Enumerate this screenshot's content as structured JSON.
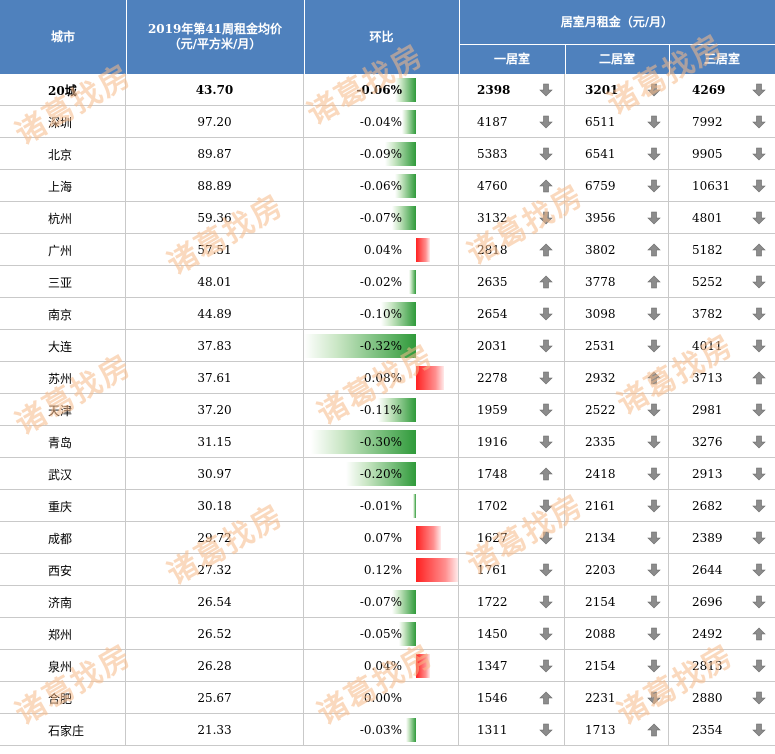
{
  "header": {
    "city": "城市",
    "price_line1": "2019年第41周租金均价",
    "price_line2": "（元/平方米/月）",
    "ratio": "环比",
    "rent_group": "居室月租金（元/月）",
    "one_room": "一居室",
    "two_room": "二居室",
    "three_room": "三居室"
  },
  "rows": [
    {
      "city": "20城",
      "price": "43.70",
      "ratio": "-0.06%",
      "ratio_value": -0.06,
      "r1": "2398",
      "r1_dir": "down",
      "r2": "3201",
      "r2_dir": "down",
      "r3": "4269",
      "r3_dir": "down"
    },
    {
      "city": "深圳",
      "price": "97.20",
      "ratio": "-0.04%",
      "ratio_value": -0.04,
      "r1": "4187",
      "r1_dir": "down",
      "r2": "6511",
      "r2_dir": "down",
      "r3": "7992",
      "r3_dir": "down"
    },
    {
      "city": "北京",
      "price": "89.87",
      "ratio": "-0.09%",
      "ratio_value": -0.09,
      "r1": "5383",
      "r1_dir": "down",
      "r2": "6541",
      "r2_dir": "down",
      "r3": "9905",
      "r3_dir": "down"
    },
    {
      "city": "上海",
      "price": "88.89",
      "ratio": "-0.06%",
      "ratio_value": -0.06,
      "r1": "4760",
      "r1_dir": "up",
      "r2": "6759",
      "r2_dir": "down",
      "r3": "10631",
      "r3_dir": "down"
    },
    {
      "city": "杭州",
      "price": "59.36",
      "ratio": "-0.07%",
      "ratio_value": -0.07,
      "r1": "3132",
      "r1_dir": "down",
      "r2": "3956",
      "r2_dir": "down",
      "r3": "4801",
      "r3_dir": "down"
    },
    {
      "city": "广州",
      "price": "57.51",
      "ratio": "0.04%",
      "ratio_value": 0.04,
      "r1": "2818",
      "r1_dir": "up",
      "r2": "3802",
      "r2_dir": "up",
      "r3": "5182",
      "r3_dir": "up"
    },
    {
      "city": "三亚",
      "price": "48.01",
      "ratio": "-0.02%",
      "ratio_value": -0.02,
      "r1": "2635",
      "r1_dir": "up",
      "r2": "3778",
      "r2_dir": "up",
      "r3": "5252",
      "r3_dir": "down"
    },
    {
      "city": "南京",
      "price": "44.89",
      "ratio": "-0.10%",
      "ratio_value": -0.1,
      "r1": "2654",
      "r1_dir": "down",
      "r2": "3098",
      "r2_dir": "down",
      "r3": "3782",
      "r3_dir": "down"
    },
    {
      "city": "大连",
      "price": "37.83",
      "ratio": "-0.32%",
      "ratio_value": -0.32,
      "r1": "2031",
      "r1_dir": "down",
      "r2": "2531",
      "r2_dir": "down",
      "r3": "4011",
      "r3_dir": "down"
    },
    {
      "city": "苏州",
      "price": "37.61",
      "ratio": "0.08%",
      "ratio_value": 0.08,
      "r1": "2278",
      "r1_dir": "down",
      "r2": "2932",
      "r2_dir": "up",
      "r3": "3713",
      "r3_dir": "up"
    },
    {
      "city": "天津",
      "price": "37.20",
      "ratio": "-0.11%",
      "ratio_value": -0.11,
      "r1": "1959",
      "r1_dir": "down",
      "r2": "2522",
      "r2_dir": "down",
      "r3": "2981",
      "r3_dir": "down"
    },
    {
      "city": "青岛",
      "price": "31.15",
      "ratio": "-0.30%",
      "ratio_value": -0.3,
      "r1": "1916",
      "r1_dir": "down",
      "r2": "2335",
      "r2_dir": "down",
      "r3": "3276",
      "r3_dir": "down"
    },
    {
      "city": "武汉",
      "price": "30.97",
      "ratio": "-0.20%",
      "ratio_value": -0.2,
      "r1": "1748",
      "r1_dir": "up",
      "r2": "2418",
      "r2_dir": "down",
      "r3": "2913",
      "r3_dir": "down"
    },
    {
      "city": "重庆",
      "price": "30.18",
      "ratio": "-0.01%",
      "ratio_value": -0.01,
      "r1": "1702",
      "r1_dir": "down",
      "r2": "2161",
      "r2_dir": "down",
      "r3": "2682",
      "r3_dir": "down"
    },
    {
      "city": "成都",
      "price": "29.72",
      "ratio": "0.07%",
      "ratio_value": 0.07,
      "r1": "1627",
      "r1_dir": "down",
      "r2": "2134",
      "r2_dir": "down",
      "r3": "2389",
      "r3_dir": "down"
    },
    {
      "city": "西安",
      "price": "27.32",
      "ratio": "0.12%",
      "ratio_value": 0.12,
      "r1": "1761",
      "r1_dir": "down",
      "r2": "2203",
      "r2_dir": "down",
      "r3": "2644",
      "r3_dir": "down"
    },
    {
      "city": "济南",
      "price": "26.54",
      "ratio": "-0.07%",
      "ratio_value": -0.07,
      "r1": "1722",
      "r1_dir": "down",
      "r2": "2154",
      "r2_dir": "down",
      "r3": "2696",
      "r3_dir": "down"
    },
    {
      "city": "郑州",
      "price": "26.52",
      "ratio": "-0.05%",
      "ratio_value": -0.05,
      "r1": "1450",
      "r1_dir": "down",
      "r2": "2088",
      "r2_dir": "down",
      "r3": "2492",
      "r3_dir": "up"
    },
    {
      "city": "泉州",
      "price": "26.28",
      "ratio": "0.04%",
      "ratio_value": 0.04,
      "r1": "1347",
      "r1_dir": "down",
      "r2": "2154",
      "r2_dir": "down",
      "r3": "2813",
      "r3_dir": "down"
    },
    {
      "city": "合肥",
      "price": "25.67",
      "ratio": "0.00%",
      "ratio_value": 0.0,
      "r1": "1546",
      "r1_dir": "up",
      "r2": "2231",
      "r2_dir": "down",
      "r3": "2880",
      "r3_dir": "down"
    },
    {
      "city": "石家庄",
      "price": "21.33",
      "ratio": "-0.03%",
      "ratio_value": -0.03,
      "r1": "1311",
      "r1_dir": "down",
      "r2": "1713",
      "r2_dir": "up",
      "r3": "2354",
      "r3_dir": "down"
    }
  ],
  "watermark": "诸葛找房",
  "colors": {
    "header_bg": "#4f81bd",
    "neg_bar": "#2f9a3a",
    "pos_bar": "#ff2020",
    "arrow": "#8c8c8c",
    "watermark": "#f7bb8a"
  }
}
